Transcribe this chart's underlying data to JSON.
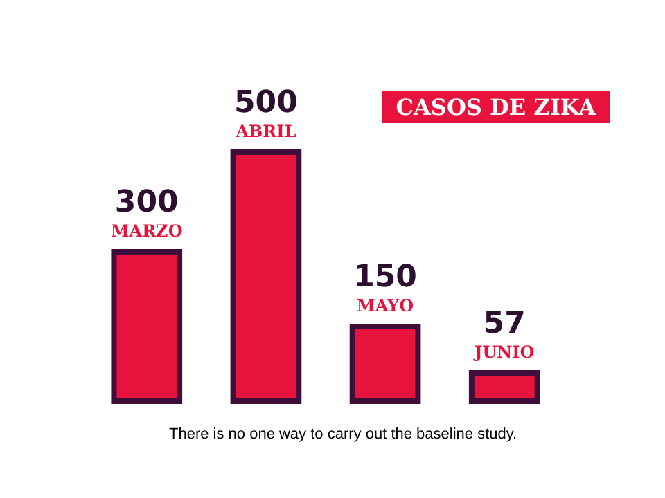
{
  "chart_data": {
    "type": "bar",
    "title": "CASOS DE ZIKA",
    "categories": [
      "MARZO",
      "ABRIL",
      "MAYO",
      "JUNIO"
    ],
    "values": [
      300,
      500,
      150,
      57
    ],
    "color": "#e8133c",
    "data_labels": true,
    "annotations": [
      "There is no one way to carry out the baseline study."
    ]
  }
}
